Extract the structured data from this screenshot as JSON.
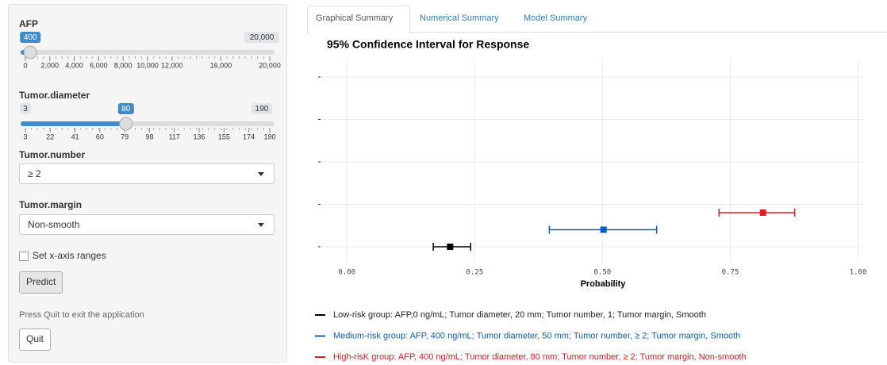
{
  "sidebar": {
    "sliders": [
      {
        "label": "AFP",
        "value": 400,
        "min": 0,
        "max": {
          "value": 20000,
          "label": "20,000"
        },
        "ticks": [
          0,
          {
            "value": 2000,
            "label": "2,000"
          },
          {
            "value": 4000,
            "label": "4,000"
          },
          {
            "value": 6000,
            "label": "6,000"
          },
          {
            "value": 8000,
            "label": "8,000"
          },
          {
            "value": 10000,
            "label": "10,000"
          },
          {
            "value": 12000,
            "label": "12,000"
          },
          {
            "value": 16000,
            "label": "16,000"
          },
          {
            "value": 20000,
            "label": "20,000"
          }
        ]
      },
      {
        "label": "Tumor.diameter",
        "value": 80,
        "min": 3,
        "max": 190,
        "ticks": [
          3,
          22,
          41,
          60,
          79,
          98,
          117,
          136,
          155,
          174,
          190
        ]
      }
    ],
    "selects": [
      {
        "label": "Tumor.number",
        "value": "≥ 2"
      },
      {
        "label": "Tumor.margin",
        "value": "Non-smooth"
      }
    ],
    "checkbox": "Set x-axis ranges",
    "predict_button": "Predict",
    "quit_note": "Press Quit to exit the application",
    "quit_button": "Quit"
  },
  "tabs": [
    "Graphical Summary",
    "Numerical Summary",
    "Model Summary"
  ],
  "chart_data": {
    "type": "errorbar",
    "title": "95% Confidence Interval for Response",
    "x_label": "Probability",
    "xlim": [
      -0.05,
      1.01
    ],
    "xticks": [
      {
        "value": 0,
        "label": "0.00"
      },
      {
        "value": 0.25,
        "label": "0.25"
      },
      {
        "value": 0.5,
        "label": "0.50"
      },
      {
        "value": 0.75,
        "label": "0.75"
      },
      {
        "value": 1,
        "label": "1.00"
      }
    ],
    "grid": true,
    "series": [
      {
        "name": "Low-risk group: AFP,0 ng/mL; Tumor diameter, 20 mm; Tumor number, 1; Tumor margin, Smooth",
        "color": "#000000",
        "estimate": 0.202,
        "lower": 0.169,
        "upper": 0.242
      },
      {
        "name": "Medium-risk group: AFP, 400 ng/mL; Tumor diameter, 50 mm; Tumor number, ≥ 2; Tumor margin, Smooth",
        "color": "#0b5cc4",
        "estimate": 0.502,
        "lower": 0.396,
        "upper": 0.606
      },
      {
        "name": "High-risK group: AFP, 400 ng/mL; Tumor diameter, 80 mm; Tumor number, ≥ 2; Tumor margin, Non-smooth",
        "color": "#e41a1c",
        "estimate": 0.814,
        "lower": 0.728,
        "upper": 0.876
      }
    ]
  }
}
